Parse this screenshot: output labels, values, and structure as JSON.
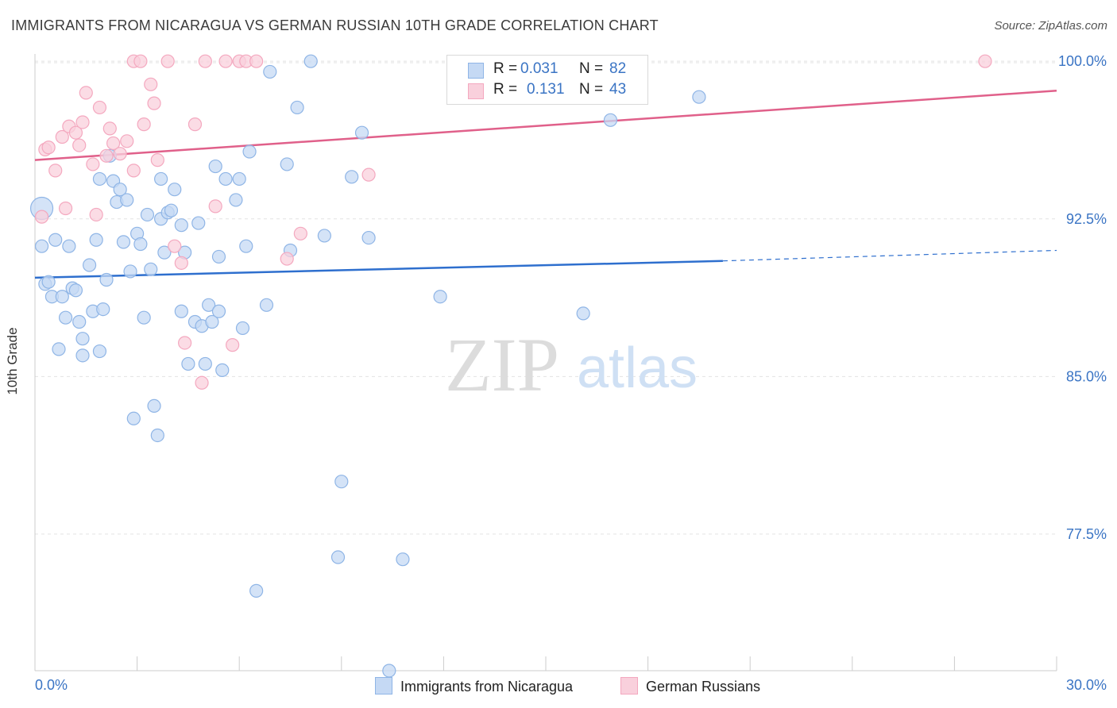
{
  "title": "IMMIGRANTS FROM NICARAGUA VS GERMAN RUSSIAN 10TH GRADE CORRELATION CHART",
  "source": "Source: ZipAtlas.com",
  "watermark": {
    "zip": "ZIP",
    "atlas": "atlas"
  },
  "legend": {
    "r_label": "R =",
    "n_label": "N =",
    "series1": {
      "r": "0.031",
      "n": "82"
    },
    "series2": {
      "r": "0.131",
      "n": "43"
    }
  },
  "chart_data": {
    "type": "scatter",
    "title": "IMMIGRANTS FROM NICARAGUA VS GERMAN RUSSIAN 10TH GRADE CORRELATION CHART",
    "xlabel": "",
    "ylabel": "10th Grade",
    "xlim": [
      0,
      30
    ],
    "ylim": [
      71,
      100.8
    ],
    "x_tick_labels": [
      "0.0%",
      "30.0%"
    ],
    "y_ticks": [
      77.5,
      85.0,
      92.5,
      100.0
    ],
    "y_tick_labels": [
      "77.5%",
      "85.0%",
      "92.5%",
      "100.0%"
    ],
    "grid": true,
    "legend_position": "top-center",
    "series": [
      {
        "name": "Immigrants from Nicaragua",
        "color": "#8fb5e6",
        "fill": "#c5d9f4",
        "line_color": "#2e6fce",
        "trend": {
          "x_start": 0,
          "y_start": 89.7,
          "x_solid_end": 20.2,
          "y_solid_end": 90.5,
          "x_end": 30,
          "y_end": 91.0
        },
        "points": [
          [
            0.2,
            93.0
          ],
          [
            0.2,
            91.2
          ],
          [
            0.3,
            89.4
          ],
          [
            0.4,
            89.5
          ],
          [
            0.5,
            88.8
          ],
          [
            0.6,
            91.5
          ],
          [
            0.7,
            86.3
          ],
          [
            0.8,
            88.8
          ],
          [
            0.9,
            87.8
          ],
          [
            1.0,
            91.2
          ],
          [
            1.1,
            89.2
          ],
          [
            1.2,
            89.1
          ],
          [
            1.3,
            87.6
          ],
          [
            1.4,
            86.0
          ],
          [
            1.4,
            86.8
          ],
          [
            1.6,
            90.3
          ],
          [
            1.7,
            88.1
          ],
          [
            1.8,
            91.5
          ],
          [
            1.9,
            94.4
          ],
          [
            1.9,
            86.2
          ],
          [
            2.0,
            88.2
          ],
          [
            2.1,
            89.6
          ],
          [
            2.2,
            95.5
          ],
          [
            2.3,
            94.3
          ],
          [
            2.4,
            93.3
          ],
          [
            2.5,
            93.9
          ],
          [
            2.6,
            91.4
          ],
          [
            2.7,
            93.4
          ],
          [
            2.8,
            90.0
          ],
          [
            2.9,
            83.0
          ],
          [
            3.0,
            91.8
          ],
          [
            3.1,
            91.3
          ],
          [
            3.2,
            87.8
          ],
          [
            3.3,
            92.7
          ],
          [
            3.4,
            90.1
          ],
          [
            3.5,
            83.6
          ],
          [
            3.6,
            82.2
          ],
          [
            3.7,
            94.4
          ],
          [
            3.7,
            92.5
          ],
          [
            3.8,
            90.9
          ],
          [
            3.9,
            92.8
          ],
          [
            4.0,
            92.9
          ],
          [
            4.1,
            93.9
          ],
          [
            4.3,
            92.2
          ],
          [
            4.3,
            88.1
          ],
          [
            4.4,
            90.9
          ],
          [
            4.5,
            85.6
          ],
          [
            4.7,
            87.6
          ],
          [
            4.8,
            92.3
          ],
          [
            4.9,
            87.4
          ],
          [
            5.0,
            85.6
          ],
          [
            5.1,
            88.4
          ],
          [
            5.2,
            87.6
          ],
          [
            5.4,
            88.1
          ],
          [
            5.4,
            90.7
          ],
          [
            5.5,
            85.3
          ],
          [
            5.3,
            95.0
          ],
          [
            5.6,
            94.4
          ],
          [
            5.9,
            93.4
          ],
          [
            6.0,
            94.4
          ],
          [
            6.1,
            87.3
          ],
          [
            6.2,
            91.2
          ],
          [
            6.3,
            95.7
          ],
          [
            6.5,
            74.8
          ],
          [
            6.8,
            88.4
          ],
          [
            6.9,
            99.5
          ],
          [
            7.4,
            95.1
          ],
          [
            7.5,
            91.0
          ],
          [
            7.7,
            97.8
          ],
          [
            8.1,
            100.0
          ],
          [
            8.5,
            91.7
          ],
          [
            8.9,
            76.4
          ],
          [
            9.0,
            80.0
          ],
          [
            9.3,
            94.5
          ],
          [
            9.6,
            96.6
          ],
          [
            9.8,
            91.6
          ],
          [
            10.4,
            71.0
          ],
          [
            10.8,
            76.3
          ],
          [
            11.9,
            88.8
          ],
          [
            16.1,
            88.0
          ],
          [
            16.9,
            97.2
          ],
          [
            19.5,
            98.3
          ]
        ]
      },
      {
        "name": "German Russians",
        "color": "#f4a8bf",
        "fill": "#f9d0dc",
        "line_color": "#e0608a",
        "trend": {
          "x_start": 0,
          "y_start": 95.3,
          "x_end": 30,
          "y_end": 98.6
        },
        "points": [
          [
            0.2,
            92.6
          ],
          [
            0.3,
            95.8
          ],
          [
            0.4,
            95.9
          ],
          [
            0.6,
            94.8
          ],
          [
            0.8,
            96.4
          ],
          [
            0.9,
            93.0
          ],
          [
            1.0,
            96.9
          ],
          [
            1.2,
            96.6
          ],
          [
            1.3,
            96.0
          ],
          [
            1.4,
            97.1
          ],
          [
            1.5,
            98.5
          ],
          [
            1.7,
            95.1
          ],
          [
            1.8,
            92.7
          ],
          [
            1.9,
            97.8
          ],
          [
            2.1,
            95.5
          ],
          [
            2.2,
            96.8
          ],
          [
            2.3,
            96.1
          ],
          [
            2.5,
            95.6
          ],
          [
            2.7,
            96.2
          ],
          [
            2.9,
            94.8
          ],
          [
            2.9,
            100.0
          ],
          [
            3.1,
            100.0
          ],
          [
            3.2,
            97.0
          ],
          [
            3.4,
            98.9
          ],
          [
            3.5,
            98.0
          ],
          [
            3.6,
            95.3
          ],
          [
            3.9,
            100.0
          ],
          [
            4.1,
            91.2
          ],
          [
            4.3,
            90.4
          ],
          [
            4.4,
            86.6
          ],
          [
            4.7,
            97.0
          ],
          [
            4.9,
            84.7
          ],
          [
            5.0,
            100.0
          ],
          [
            5.3,
            93.1
          ],
          [
            5.6,
            100.0
          ],
          [
            5.8,
            86.5
          ],
          [
            6.0,
            100.0
          ],
          [
            6.2,
            100.0
          ],
          [
            6.5,
            100.0
          ],
          [
            7.4,
            90.6
          ],
          [
            7.8,
            91.8
          ],
          [
            9.8,
            94.6
          ],
          [
            27.9,
            100.0
          ]
        ]
      }
    ]
  },
  "bottom_legend": {
    "item1": "Immigrants from Nicaragua",
    "item2": "German Russians"
  }
}
